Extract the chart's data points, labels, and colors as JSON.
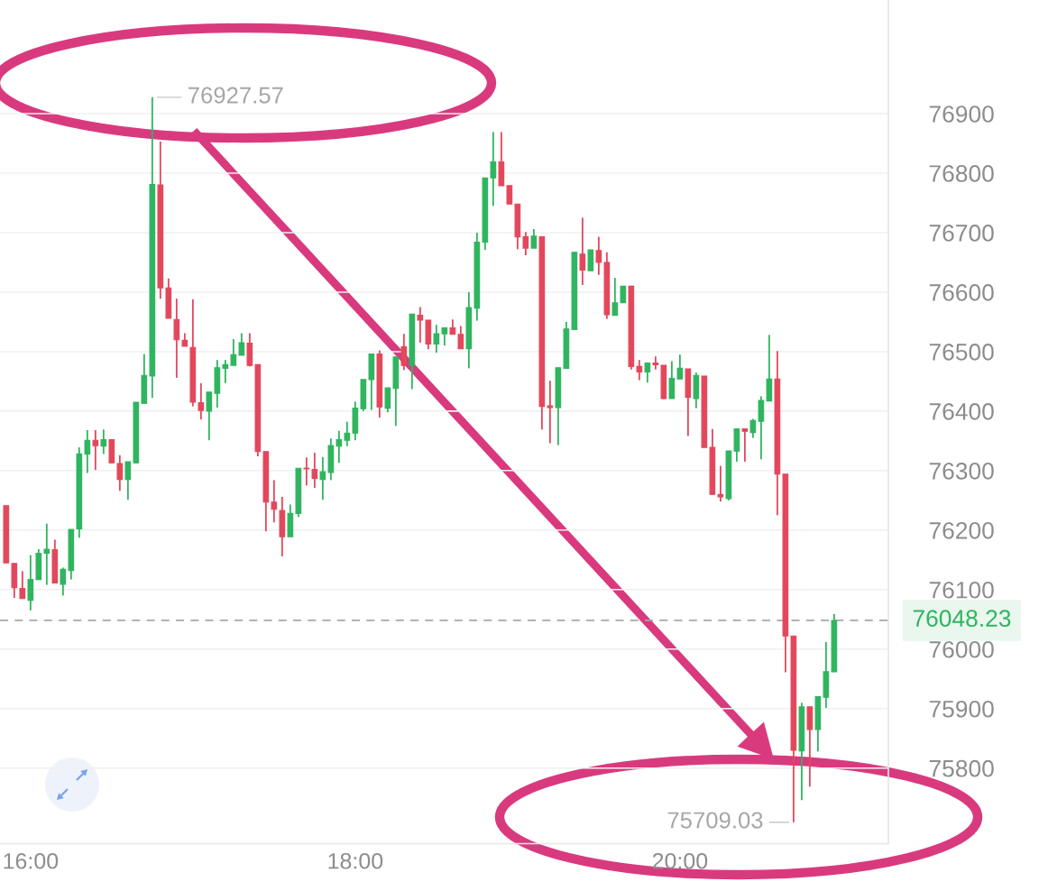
{
  "chart_data": {
    "type": "candlestick",
    "x": [
      15.85,
      15.9,
      15.95,
      16,
      16.05,
      16.1,
      16.15,
      16.2,
      16.25,
      16.3,
      16.35,
      16.4,
      16.45,
      16.5,
      16.55,
      16.6,
      16.65,
      16.7,
      16.75,
      16.8,
      16.85,
      16.9,
      16.95,
      17,
      17.05,
      17.1,
      17.15,
      17.2,
      17.25,
      17.3,
      17.35,
      17.4,
      17.45,
      17.5,
      17.55,
      17.6,
      17.65,
      17.7,
      17.75,
      17.8,
      17.85,
      17.9,
      17.95,
      18,
      18.05,
      18.1,
      18.15,
      18.2,
      18.25,
      18.3,
      18.35,
      18.4,
      18.45,
      18.5,
      18.55,
      18.6,
      18.65,
      18.7,
      18.75,
      18.8,
      18.85,
      18.9,
      18.95,
      19,
      19.05,
      19.1,
      19.15,
      19.2,
      19.25,
      19.3,
      19.35,
      19.4,
      19.45,
      19.5,
      19.55,
      19.6,
      19.65,
      19.7,
      19.75,
      19.8,
      19.85,
      19.9,
      19.95,
      20,
      20.05,
      20.1,
      20.15,
      20.2,
      20.25,
      20.3,
      20.35,
      20.4,
      20.45,
      20.5,
      20.55,
      20.6,
      20.65,
      20.7,
      20.75,
      20.8,
      20.85,
      20.9,
      20.95
    ],
    "ohlc": [
      [
        76241,
        76241,
        76145,
        76145
      ],
      [
        76144,
        76144,
        76086,
        76103
      ],
      [
        76102,
        76131,
        76085,
        76085
      ],
      [
        76082,
        76158,
        76065,
        76117
      ],
      [
        76117,
        76168,
        76117,
        76161
      ],
      [
        76161,
        76211,
        76108,
        76168
      ],
      [
        76167,
        76184,
        76111,
        76111
      ],
      [
        76109,
        76137,
        76090,
        76134
      ],
      [
        76132,
        76201,
        76117,
        76201
      ],
      [
        76202,
        76339,
        76187,
        76328
      ],
      [
        76328,
        76368,
        76296,
        76351
      ],
      [
        76351,
        76368,
        76301,
        76342
      ],
      [
        76341,
        76369,
        76328,
        76352
      ],
      [
        76352,
        76352,
        76313,
        76313
      ],
      [
        76312,
        76326,
        76266,
        76285
      ],
      [
        76285,
        76315,
        76251,
        76315
      ],
      [
        76313,
        76415,
        76312,
        76415
      ],
      [
        76413,
        76496,
        76413,
        76460
      ],
      [
        76459,
        76927.57,
        76422,
        76781
      ],
      [
        76780,
        76853,
        76589,
        76607
      ],
      [
        76607,
        76623,
        76556,
        76556
      ],
      [
        76554,
        76589,
        76456,
        76520
      ],
      [
        76519,
        76531,
        76509,
        76509
      ],
      [
        76507,
        76588,
        76408,
        76415
      ],
      [
        76414,
        76447,
        76386,
        76401
      ],
      [
        76400,
        76432,
        76351,
        76432
      ],
      [
        76430,
        76486,
        76406,
        76473
      ],
      [
        76472,
        76486,
        76447,
        76478
      ],
      [
        76477,
        76521,
        76477,
        76495
      ],
      [
        76494,
        76531,
        76494,
        76515
      ],
      [
        76514,
        76531,
        76475,
        76477
      ],
      [
        76478,
        76478,
        76324,
        76332
      ],
      [
        76332,
        76332,
        76198,
        76247
      ],
      [
        76247,
        76284,
        76213,
        76235
      ],
      [
        76233,
        76256,
        76156,
        76189
      ],
      [
        76189,
        76243,
        76189,
        76228
      ],
      [
        76228,
        76304,
        76222,
        76304
      ],
      [
        76304,
        76322,
        76275,
        76303
      ],
      [
        76302,
        76330,
        76271,
        76287
      ],
      [
        76285,
        76323,
        76251,
        76298
      ],
      [
        76297,
        76354,
        76284,
        76342
      ],
      [
        76341,
        76367,
        76313,
        76352
      ],
      [
        76351,
        76382,
        76341,
        76363
      ],
      [
        76363,
        76416,
        76351,
        76405
      ],
      [
        76404,
        76453,
        76400,
        76453
      ],
      [
        76453,
        76496,
        76402,
        76496
      ],
      [
        76496,
        76502,
        76389,
        76407
      ],
      [
        76405,
        76439,
        76398,
        76439
      ],
      [
        76438,
        76491,
        76375,
        76491
      ],
      [
        76508,
        76530,
        76469,
        76477
      ],
      [
        76477,
        76563,
        76437,
        76563
      ],
      [
        76561,
        76575,
        76515,
        76553
      ],
      [
        76553,
        76553,
        76504,
        76513
      ],
      [
        76513,
        76545,
        76498,
        76530
      ],
      [
        76530,
        76540,
        76510,
        76540
      ],
      [
        76540,
        76554,
        76529,
        76529
      ],
      [
        76529,
        76543,
        76505,
        76505
      ],
      [
        76505,
        76600,
        76472,
        76574
      ],
      [
        76573,
        76700,
        76552,
        76684
      ],
      [
        76684,
        76792,
        76671,
        76792
      ],
      [
        76792,
        76869,
        76745,
        76819
      ],
      [
        76819,
        76869,
        76779,
        76779
      ],
      [
        76779,
        76779,
        76748,
        76748
      ],
      [
        76748,
        76748,
        76672,
        76693
      ],
      [
        76693,
        76701,
        76662,
        76674
      ],
      [
        76674,
        76706,
        76674,
        76694
      ],
      [
        76693,
        76693,
        76369,
        76408
      ],
      [
        76409,
        76451,
        76346,
        76406
      ],
      [
        76406,
        76473,
        76343,
        76473
      ],
      [
        76472,
        76550,
        76472,
        76538
      ],
      [
        76537,
        76667,
        76537,
        76667
      ],
      [
        76664,
        76725,
        76612,
        76637
      ],
      [
        76636,
        76671,
        76636,
        76671
      ],
      [
        76670,
        76693,
        76629,
        76650
      ],
      [
        76650,
        76667,
        76555,
        76562
      ],
      [
        76561,
        76624,
        76561,
        76582
      ],
      [
        76582,
        76610,
        76582,
        76610
      ],
      [
        76610,
        76610,
        76470,
        76475
      ],
      [
        76475,
        76486,
        76452,
        76466
      ],
      [
        76466,
        76481,
        76448,
        76481
      ],
      [
        76481,
        76492,
        76470,
        76478
      ],
      [
        76477,
        76477,
        76420,
        76421
      ],
      [
        76421,
        76484,
        76421,
        76455
      ],
      [
        76454,
        76495,
        76454,
        76472
      ],
      [
        76471,
        76471,
        76358,
        76423
      ],
      [
        76421,
        76465,
        76405,
        76460
      ],
      [
        76459,
        76459,
        76339,
        76339
      ],
      [
        76339,
        76370,
        76260,
        76260
      ],
      [
        76260,
        76308,
        76248,
        76256
      ],
      [
        76253,
        76333,
        76250,
        76333
      ],
      [
        76333,
        76370,
        76315,
        76370
      ],
      [
        76370,
        76370,
        76315,
        76366
      ],
      [
        76364,
        76387,
        76355,
        76384
      ],
      [
        76383,
        76425,
        76319,
        76418
      ],
      [
        76417,
        76528,
        76417,
        76454
      ],
      [
        76454,
        76501,
        76225,
        76294
      ],
      [
        76294,
        76294,
        75961,
        76022
      ],
      [
        76022,
        76022,
        75709.03,
        75830
      ],
      [
        75829,
        75910,
        75746,
        75903
      ],
      [
        75903,
        75903,
        75769,
        75865
      ],
      [
        75865,
        75920,
        75828,
        75920
      ],
      [
        75919,
        76012,
        75901,
        75962
      ],
      [
        75962,
        76059,
        75962,
        76048.23
      ]
    ],
    "colors": [
      "#e2475b",
      "#e2475b",
      "#e2475b",
      "#2fb45f",
      "#2fb45f",
      "#2fb45f",
      "#e2475b",
      "#2fb45f",
      "#2fb45f",
      "#2fb45f",
      "#2fb45f",
      "#e2475b",
      "#2fb45f",
      "#e2475b",
      "#e2475b",
      "#2fb45f",
      "#2fb45f",
      "#2fb45f",
      "#2fb45f",
      "#e2475b",
      "#e2475b",
      "#e2475b",
      "#e2475b",
      "#e2475b",
      "#e2475b",
      "#2fb45f",
      "#2fb45f",
      "#2fb45f",
      "#2fb45f",
      "#2fb45f",
      "#e2475b",
      "#e2475b",
      "#e2475b",
      "#e2475b",
      "#e2475b",
      "#2fb45f",
      "#2fb45f",
      "#e2475b",
      "#e2475b",
      "#2fb45f",
      "#2fb45f",
      "#2fb45f",
      "#2fb45f",
      "#2fb45f",
      "#2fb45f",
      "#2fb45f",
      "#e2475b",
      "#2fb45f",
      "#2fb45f",
      "#e2475b",
      "#2fb45f",
      "#e2475b",
      "#e2475b",
      "#2fb45f",
      "#2fb45f",
      "#e2475b",
      "#e2475b",
      "#2fb45f",
      "#2fb45f",
      "#2fb45f",
      "#2fb45f",
      "#e2475b",
      "#e2475b",
      "#e2475b",
      "#e2475b",
      "#2fb45f",
      "#e2475b",
      "#e2475b",
      "#2fb45f",
      "#2fb45f",
      "#2fb45f",
      "#e2475b",
      "#2fb45f",
      "#e2475b",
      "#e2475b",
      "#2fb45f",
      "#2fb45f",
      "#e2475b",
      "#e2475b",
      "#2fb45f",
      "#e2475b",
      "#e2475b",
      "#2fb45f",
      "#2fb45f",
      "#e2475b",
      "#2fb45f",
      "#e2475b",
      "#e2475b",
      "#e2475b",
      "#2fb45f",
      "#2fb45f",
      "#e2475b",
      "#2fb45f",
      "#2fb45f",
      "#2fb45f",
      "#e2475b",
      "#e2475b",
      "#e2475b",
      "#2fb45f",
      "#e2475b",
      "#2fb45f",
      "#2fb45f",
      "#2fb45f"
    ],
    "xlim": [
      15.812,
      21.284
    ],
    "ylim": [
      75673,
      77091
    ],
    "xticks": [
      {
        "value": 16,
        "label": "16:00"
      },
      {
        "value": 18,
        "label": "18:00"
      },
      {
        "value": 20,
        "label": "20:00"
      }
    ],
    "yticks": [
      75800,
      75900,
      76000,
      76100,
      76200,
      76300,
      76400,
      76500,
      76600,
      76700,
      76800,
      76900
    ],
    "grid": "y",
    "ref_lines": [
      {
        "axis": "y",
        "value": 76048.23,
        "label": "76048.23",
        "color": "#a8a8a8",
        "line_style": "dashed"
      }
    ],
    "annotations": [
      {
        "text": "76927.57",
        "x": 16.75,
        "y": 76927.57
      },
      {
        "text": "75709.03",
        "x": 20.7,
        "y": 75709.03
      }
    ]
  }
}
